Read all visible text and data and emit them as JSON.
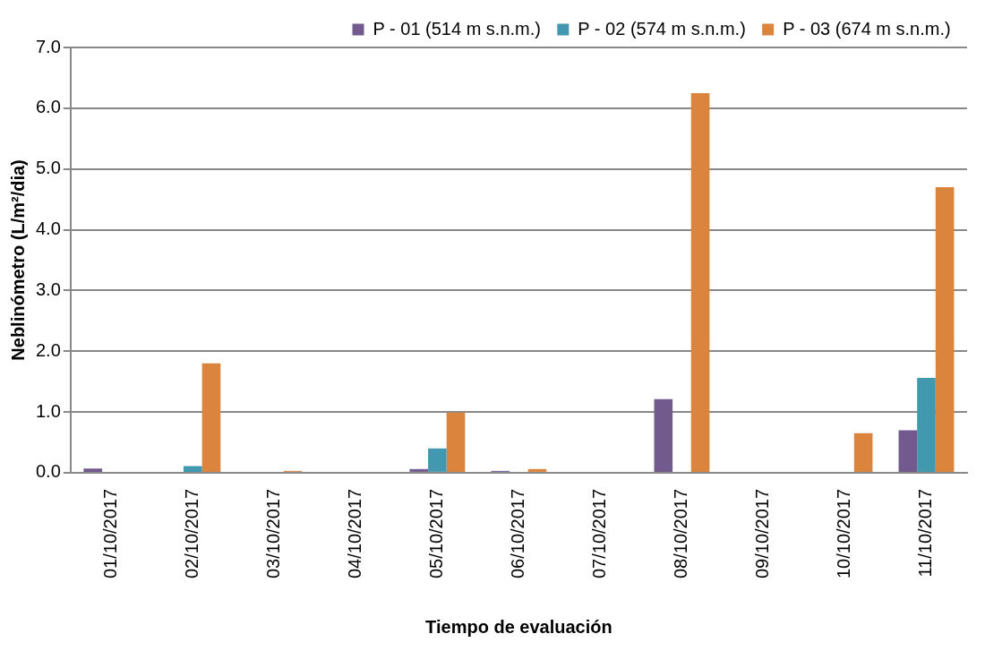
{
  "chart_data": {
    "type": "bar",
    "xlabel": "Tiempo de evaluación",
    "ylabel": "Neblinómetro (L/m²/dia)",
    "categories": [
      "01/10/2017",
      "02/10/2017",
      "03/10/2017",
      "04/10/2017",
      "05/10/2017",
      "06/10/2017",
      "07/10/2017",
      "08/10/2017",
      "09/10/2017",
      "10/10/2017",
      "11/10/2017"
    ],
    "series": [
      {
        "name": "P - 01 (514 m s.n.m.)",
        "color": "#725a8f",
        "values": [
          0.07,
          0,
          0,
          0,
          0.06,
          0.03,
          0,
          1.21,
          0,
          0,
          0.7
        ]
      },
      {
        "name": "P - 02 (574 m s.n.m.)",
        "color": "#4198af",
        "values": [
          0,
          0.11,
          0,
          0,
          0.4,
          0,
          0,
          0,
          0,
          0,
          1.56
        ]
      },
      {
        "name": "P - 03 (674 m s.n.m.)",
        "color": "#db843d",
        "values": [
          0,
          1.8,
          0.03,
          0,
          0.99,
          0.06,
          0,
          6.25,
          0,
          0.65,
          4.7
        ]
      }
    ],
    "ylim": [
      0,
      7
    ],
    "yticks": [
      {
        "value": 0,
        "label": "0.0"
      },
      {
        "value": 1,
        "label": "1.0"
      },
      {
        "value": 2,
        "label": "2.0"
      },
      {
        "value": 3,
        "label": "3.0"
      },
      {
        "value": 4,
        "label": "4.0"
      },
      {
        "value": 5,
        "label": "5.0"
      },
      {
        "value": 6,
        "label": "6.0"
      },
      {
        "value": 7,
        "label": "7.0"
      }
    ],
    "grid": "y",
    "legend": "top right"
  }
}
